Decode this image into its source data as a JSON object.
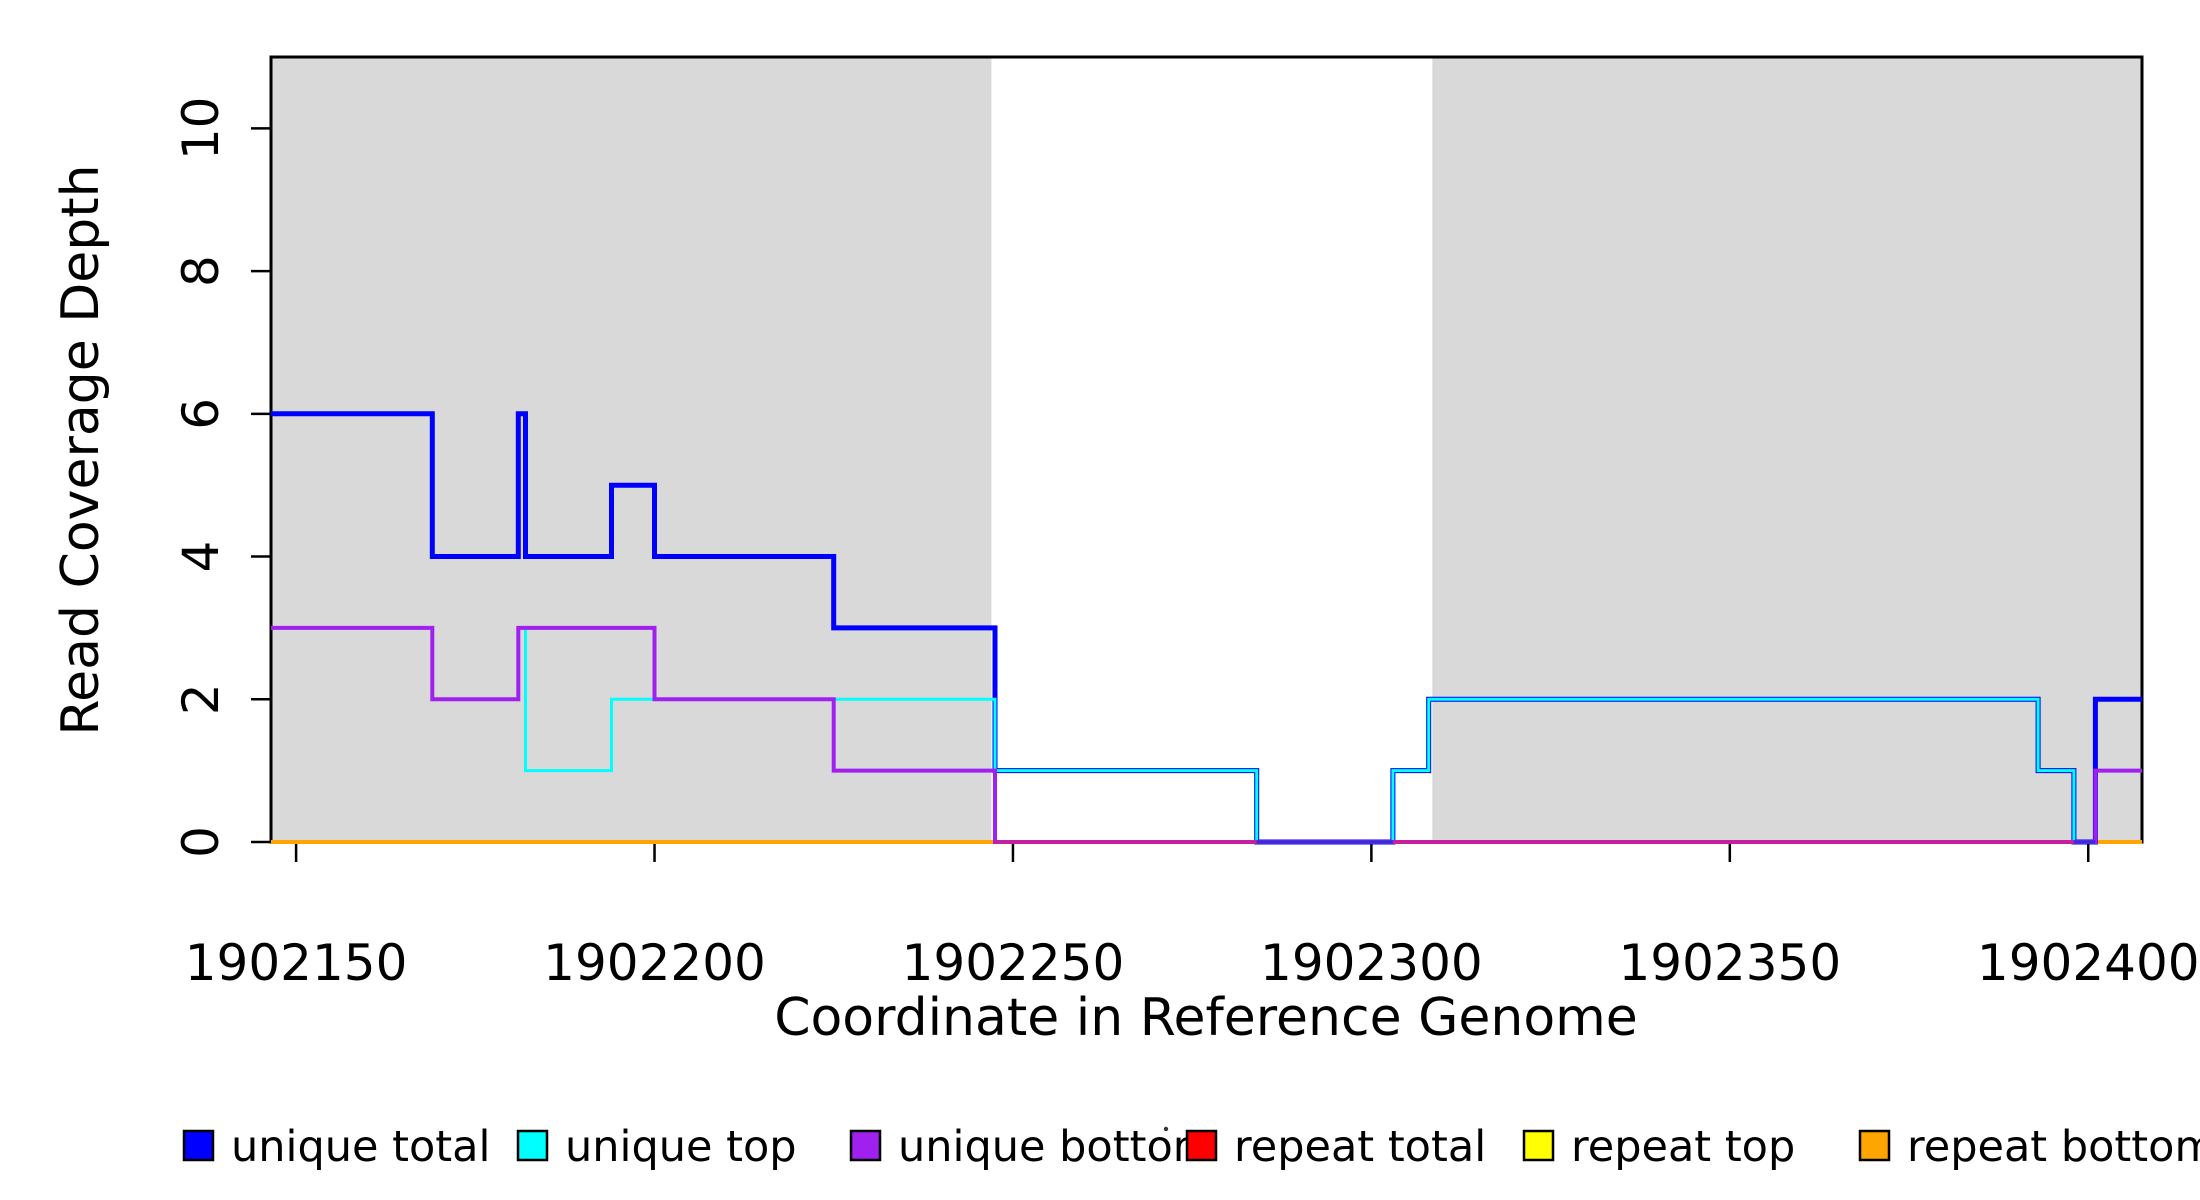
{
  "chart_data": {
    "type": "line",
    "subtype": "step",
    "title": "",
    "xlabel": "Coordinate in Reference Genome",
    "ylabel": "Read Coverage Depth",
    "xlim": [
      1902146.5,
      1902407.5
    ],
    "ylim": [
      0,
      11
    ],
    "xticks": [
      1902150,
      1902200,
      1902250,
      1902300,
      1902350,
      1902400
    ],
    "yticks": [
      0,
      2,
      4,
      6,
      8,
      10
    ],
    "grid": false,
    "background_color": "#FFFFFF",
    "shaded_region_color": "#D9D9D9",
    "shaded_regions": [
      {
        "x0": 1902146.5,
        "x1": 1902247.0
      },
      {
        "x0": 1902308.5,
        "x1": 1902407.5
      }
    ],
    "series": [
      {
        "name": "unique total",
        "color": "#0000FF",
        "points": [
          [
            1902146.5,
            6
          ],
          [
            1902169,
            6
          ],
          [
            1902169,
            4
          ],
          [
            1902181,
            4
          ],
          [
            1902181,
            6
          ],
          [
            1902182,
            6
          ],
          [
            1902182,
            4
          ],
          [
            1902194,
            4
          ],
          [
            1902194,
            5
          ],
          [
            1902200,
            5
          ],
          [
            1902200,
            4
          ],
          [
            1902225,
            4
          ],
          [
            1902225,
            3
          ],
          [
            1902247.5,
            3
          ],
          [
            1902247.5,
            1
          ],
          [
            1902284,
            1
          ],
          [
            1902284,
            0
          ],
          [
            1902303,
            0
          ],
          [
            1902303,
            1
          ],
          [
            1902308,
            1
          ],
          [
            1902308,
            2
          ],
          [
            1902393,
            2
          ],
          [
            1902393,
            1
          ],
          [
            1902398,
            1
          ],
          [
            1902398,
            0
          ],
          [
            1902401,
            0
          ],
          [
            1902401,
            2
          ],
          [
            1902407.5,
            2
          ]
        ]
      },
      {
        "name": "unique top",
        "color": "#00FFFF",
        "points": [
          [
            1902146.5,
            3
          ],
          [
            1902169,
            3
          ],
          [
            1902169,
            2
          ],
          [
            1902181,
            2
          ],
          [
            1902181,
            3
          ],
          [
            1902182,
            3
          ],
          [
            1902182,
            1
          ],
          [
            1902194,
            1
          ],
          [
            1902194,
            2
          ],
          [
            1902247.5,
            2
          ],
          [
            1902247.5,
            1
          ],
          [
            1902284,
            1
          ],
          [
            1902284,
            0
          ],
          [
            1902303,
            0
          ],
          [
            1902303,
            1
          ],
          [
            1902308,
            1
          ],
          [
            1902308,
            2
          ],
          [
            1902393,
            2
          ],
          [
            1902393,
            1
          ],
          [
            1902398,
            1
          ],
          [
            1902398,
            0
          ],
          [
            1902401,
            0
          ],
          [
            1902401,
            1
          ],
          [
            1902407.5,
            1
          ]
        ]
      },
      {
        "name": "unique bottom",
        "color": "#A020F0",
        "points": [
          [
            1902146.5,
            3
          ],
          [
            1902169,
            3
          ],
          [
            1902169,
            2
          ],
          [
            1902181,
            2
          ],
          [
            1902181,
            3
          ],
          [
            1902200,
            3
          ],
          [
            1902200,
            2
          ],
          [
            1902225,
            2
          ],
          [
            1902225,
            1
          ],
          [
            1902247.5,
            1
          ],
          [
            1902247.5,
            0
          ],
          [
            1902401,
            0
          ],
          [
            1902401,
            1
          ],
          [
            1902407.5,
            1
          ]
        ]
      },
      {
        "name": "repeat total",
        "color": "#FF0000",
        "points": [
          [
            1902146.5,
            0
          ],
          [
            1902407.5,
            0
          ]
        ]
      },
      {
        "name": "repeat top",
        "color": "#FFFF00",
        "points": [
          [
            1902146.5,
            0
          ],
          [
            1902407.5,
            0
          ]
        ]
      },
      {
        "name": "repeat bottom",
        "color": "#FFA500",
        "points": [
          [
            1902146.5,
            0
          ],
          [
            1902407.5,
            0
          ]
        ]
      }
    ],
    "render_layers": [
      {
        "name": "repeat-total-baseline",
        "color": "#FF0000",
        "width": 3,
        "points": [
          [
            1902146.5,
            0
          ],
          [
            1902407.5,
            0
          ]
        ]
      },
      {
        "name": "repeat-bottom-left",
        "color": "#FFA500",
        "width": 4,
        "points": [
          [
            1902146.5,
            0
          ],
          [
            1902247.5,
            0
          ]
        ]
      },
      {
        "name": "repeat-bottom-right",
        "color": "#FFA500",
        "width": 4,
        "points": [
          [
            1902401,
            0
          ],
          [
            1902407.5,
            0
          ]
        ]
      },
      {
        "name": "unique-total",
        "color": "#0000FF",
        "width": 5,
        "points": [
          [
            1902146.5,
            6
          ],
          [
            1902169,
            6
          ],
          [
            1902169,
            4
          ],
          [
            1902181,
            4
          ],
          [
            1902181,
            6
          ],
          [
            1902182,
            6
          ],
          [
            1902182,
            4
          ],
          [
            1902194,
            4
          ],
          [
            1902194,
            5
          ],
          [
            1902200,
            5
          ],
          [
            1902200,
            4
          ],
          [
            1902225,
            4
          ],
          [
            1902225,
            3
          ],
          [
            1902247.5,
            3
          ],
          [
            1902247.5,
            1
          ],
          [
            1902284,
            1
          ],
          [
            1902284,
            0
          ],
          [
            1902303,
            0
          ],
          [
            1902303,
            1
          ],
          [
            1902308,
            1
          ],
          [
            1902308,
            2
          ],
          [
            1902393,
            2
          ],
          [
            1902393,
            1
          ],
          [
            1902398,
            1
          ],
          [
            1902398,
            0
          ],
          [
            1902401,
            0
          ],
          [
            1902401,
            2
          ],
          [
            1902407.5,
            2
          ]
        ]
      },
      {
        "name": "unique-top",
        "color": "#00FFFF",
        "width": 3,
        "points": [
          [
            1902146.5,
            3
          ],
          [
            1902169,
            3
          ],
          [
            1902169,
            2
          ],
          [
            1902181,
            2
          ],
          [
            1902181,
            3
          ],
          [
            1902182,
            3
          ],
          [
            1902182,
            1
          ],
          [
            1902194,
            1
          ],
          [
            1902194,
            2
          ],
          [
            1902247.5,
            2
          ],
          [
            1902247.5,
            1
          ],
          [
            1902284,
            1
          ],
          [
            1902284,
            0
          ],
          [
            1902303,
            0
          ],
          [
            1902303,
            1
          ],
          [
            1902308,
            1
          ],
          [
            1902308,
            2
          ],
          [
            1902393,
            2
          ],
          [
            1902393,
            1
          ],
          [
            1902398,
            1
          ],
          [
            1902398,
            0
          ],
          [
            1902401,
            0
          ],
          [
            1902401,
            1
          ],
          [
            1902407.5,
            1
          ]
        ]
      },
      {
        "name": "unique-bottom",
        "color": "#A020F0",
        "width": 4,
        "points": [
          [
            1902146.5,
            3
          ],
          [
            1902169,
            3
          ],
          [
            1902169,
            2
          ],
          [
            1902181,
            2
          ],
          [
            1902181,
            3
          ],
          [
            1902200,
            3
          ],
          [
            1902200,
            2
          ],
          [
            1902225,
            2
          ],
          [
            1902225,
            1
          ],
          [
            1902247.5,
            1
          ],
          [
            1902247.5,
            0
          ],
          [
            1902401,
            0
          ],
          [
            1902401,
            1
          ],
          [
            1902407.5,
            1
          ]
        ]
      },
      {
        "name": "baseline-overlap-crimson-a",
        "color": "#DC1E6E",
        "width": 2.5,
        "points": [
          [
            1902247.5,
            0
          ],
          [
            1902284,
            0
          ]
        ]
      },
      {
        "name": "baseline-overlap-crimson-b",
        "color": "#DC1E6E",
        "width": 2.5,
        "points": [
          [
            1902303,
            0
          ],
          [
            1902398,
            0
          ]
        ]
      },
      {
        "name": "baseline-overlap-blue-a",
        "color": "#3A2BD8",
        "width": 3.5,
        "points": [
          [
            1902284,
            0
          ],
          [
            1902303,
            0
          ]
        ]
      },
      {
        "name": "baseline-overlap-blue-b",
        "color": "#3A2BD8",
        "width": 3.5,
        "points": [
          [
            1902398,
            0
          ],
          [
            1902401,
            0
          ]
        ]
      }
    ]
  },
  "legend": {
    "entries": [
      {
        "label": "unique total",
        "color": "#0000FF"
      },
      {
        "label": "unique top",
        "color": "#00FFFF"
      },
      {
        "label": "unique bottom",
        "color": "#A020F0"
      },
      {
        "label": "repeat total",
        "color": "#FF0000"
      },
      {
        "label": "repeat top",
        "color": "#FFFF00"
      },
      {
        "label": "repeat bottom",
        "color": "#FFA500"
      }
    ]
  },
  "annotations": {
    "stray_dot_color": "#333333"
  }
}
